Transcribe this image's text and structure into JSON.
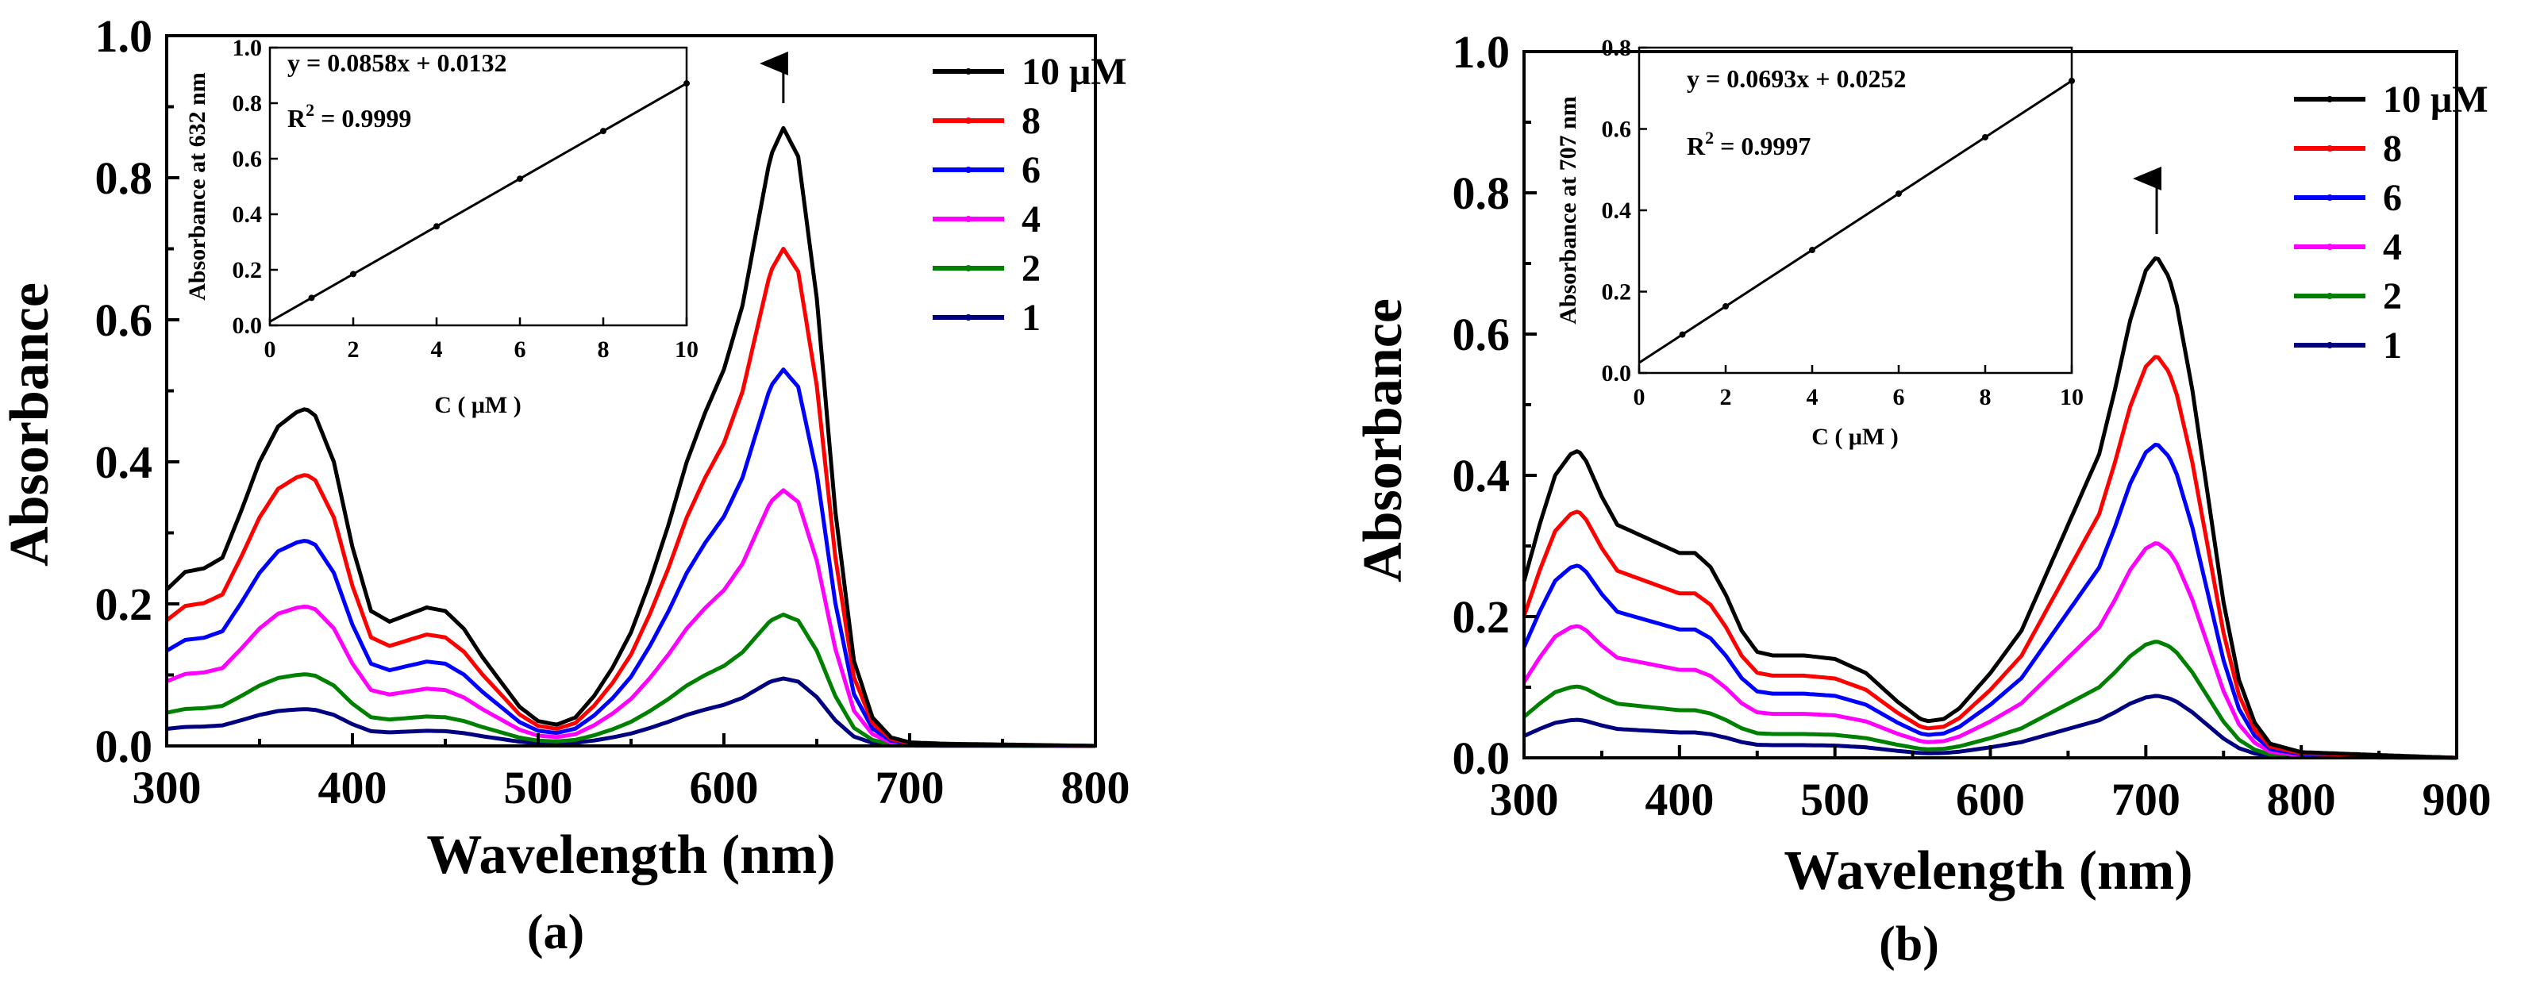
{
  "chart_data": [
    {
      "type": "line",
      "panel_label": "(a)",
      "xlabel": "Wavelength (nm)",
      "ylabel": "Absorbance",
      "xlim": [
        300,
        800
      ],
      "ylim": [
        0.0,
        1.0
      ],
      "xticks": [
        "300",
        "400",
        "500",
        "600",
        "700",
        "800"
      ],
      "yticks": [
        "0.0",
        "0.2",
        "0.4",
        "0.6",
        "0.8",
        "1.0"
      ],
      "legend_position": "top-right",
      "arrow_at_nm": 632,
      "series": [
        {
          "name": "10 μM",
          "color": "#000000",
          "peak": 0.87,
          "scale": 1.0
        },
        {
          "name": "8",
          "color": "#ff0000",
          "peak": 0.7,
          "scale": 0.8046
        },
        {
          "name": "6",
          "color": "#0000ff",
          "peak": 0.53,
          "scale": 0.6092
        },
        {
          "name": "4",
          "color": "#ff00ff",
          "peak": 0.36,
          "scale": 0.4138
        },
        {
          "name": "2",
          "color": "#008000",
          "peak": 0.185,
          "scale": 0.2126
        },
        {
          "name": "1",
          "color": "#000080",
          "peak": 0.095,
          "scale": 0.1092
        }
      ],
      "spectrum_10uM": {
        "x": [
          300,
          310,
          320,
          330,
          340,
          350,
          360,
          370,
          375,
          380,
          390,
          400,
          410,
          420,
          430,
          440,
          450,
          460,
          470,
          480,
          490,
          500,
          510,
          520,
          530,
          540,
          550,
          560,
          570,
          580,
          590,
          600,
          610,
          620,
          625,
          632,
          640,
          650,
          660,
          670,
          680,
          690,
          700,
          720,
          750,
          800
        ],
        "y": [
          0.22,
          0.245,
          0.25,
          0.265,
          0.33,
          0.4,
          0.45,
          0.47,
          0.475,
          0.465,
          0.4,
          0.28,
          0.19,
          0.175,
          0.185,
          0.195,
          0.19,
          0.165,
          0.125,
          0.09,
          0.055,
          0.035,
          0.03,
          0.04,
          0.07,
          0.11,
          0.16,
          0.23,
          0.31,
          0.4,
          0.47,
          0.53,
          0.62,
          0.76,
          0.83,
          0.87,
          0.83,
          0.63,
          0.33,
          0.12,
          0.04,
          0.012,
          0.005,
          0.003,
          0.002,
          0.0
        ]
      },
      "inset": {
        "equation": "y = 0.0858x + 0.0132",
        "r2_label": "R",
        "r2_sup": "2",
        "r2_value": " = 0.9999",
        "xlabel": "C ( μM )",
        "ylabel": "Absorbance at 632 nm",
        "xlim": [
          0,
          10
        ],
        "ylim": [
          0.0,
          1.0
        ],
        "xticks": [
          "0",
          "2",
          "4",
          "6",
          "8",
          "10"
        ],
        "yticks": [
          "0.0",
          "0.2",
          "0.4",
          "0.6",
          "0.8",
          "1.0"
        ],
        "slope": 0.0858,
        "intercept": 0.0132,
        "points_x": [
          1,
          2,
          4,
          6,
          8,
          10
        ]
      }
    },
    {
      "type": "line",
      "panel_label": "(b)",
      "xlabel": "Wavelength (nm)",
      "ylabel": "Absorbance",
      "xlim": [
        300,
        900
      ],
      "ylim": [
        0.0,
        1.0
      ],
      "xticks": [
        "300",
        "400",
        "500",
        "600",
        "700",
        "800",
        "900"
      ],
      "yticks": [
        "0.0",
        "0.2",
        "0.4",
        "0.6",
        "0.8",
        "1.0"
      ],
      "legend_position": "top-right",
      "arrow_at_nm": 707,
      "series": [
        {
          "name": "10 μM",
          "color": "#000000",
          "peak": 0.71,
          "scale": 1.0
        },
        {
          "name": "8",
          "color": "#ff0000",
          "peak": 0.57,
          "scale": 0.8028
        },
        {
          "name": "6",
          "color": "#0000ff",
          "peak": 0.445,
          "scale": 0.6268
        },
        {
          "name": "4",
          "color": "#ff00ff",
          "peak": 0.305,
          "scale": 0.4296
        },
        {
          "name": "2",
          "color": "#008000",
          "peak": 0.165,
          "scale": 0.2324
        },
        {
          "name": "1",
          "color": "#000080",
          "peak": 0.088,
          "scale": 0.1239
        }
      ],
      "spectrum_10uM": {
        "x": [
          300,
          310,
          320,
          330,
          335,
          340,
          350,
          360,
          370,
          380,
          390,
          400,
          410,
          420,
          430,
          440,
          450,
          460,
          480,
          500,
          520,
          540,
          555,
          560,
          570,
          580,
          600,
          620,
          640,
          650,
          660,
          670,
          680,
          690,
          700,
          707,
          715,
          720,
          730,
          740,
          750,
          760,
          770,
          780,
          800,
          850,
          900
        ],
        "y": [
          0.25,
          0.33,
          0.4,
          0.43,
          0.435,
          0.42,
          0.37,
          0.33,
          0.32,
          0.31,
          0.3,
          0.29,
          0.29,
          0.27,
          0.23,
          0.18,
          0.15,
          0.145,
          0.145,
          0.14,
          0.12,
          0.08,
          0.055,
          0.052,
          0.055,
          0.07,
          0.12,
          0.18,
          0.28,
          0.33,
          0.38,
          0.43,
          0.52,
          0.62,
          0.69,
          0.71,
          0.68,
          0.64,
          0.52,
          0.37,
          0.22,
          0.11,
          0.05,
          0.02,
          0.008,
          0.004,
          0.0
        ]
      },
      "inset": {
        "equation": "y = 0.0693x + 0.0252",
        "r2_label": "R",
        "r2_sup": "2",
        "r2_value": " = 0.9997",
        "xlabel": "C ( μM )",
        "ylabel": "Absorbance at 707 nm",
        "xlim": [
          0,
          10
        ],
        "ylim": [
          0.0,
          0.8
        ],
        "xticks": [
          "0",
          "2",
          "4",
          "6",
          "8",
          "10"
        ],
        "yticks": [
          "0.0",
          "0.2",
          "0.4",
          "0.6",
          "0.8"
        ],
        "slope": 0.0693,
        "intercept": 0.0252,
        "points_x": [
          1,
          2,
          4,
          6,
          8,
          10
        ]
      }
    }
  ]
}
